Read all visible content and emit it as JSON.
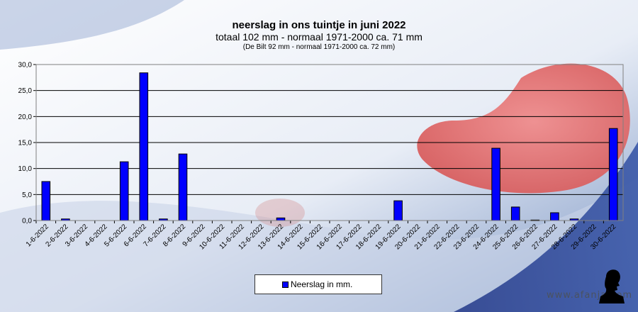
{
  "chart_data": {
    "type": "bar",
    "title": "neerslag in ons tuintje in juni 2022",
    "subtitle": "totaal 102 mm - normaal 1971-2000 ca. 71 mm",
    "note": "(De Bilt 92 mm - normaal 1971-2000 ca. 72 mm)",
    "categories": [
      "1-6-2022",
      "2-6-2022",
      "3-6-2022",
      "4-6-2022",
      "5-6-2022",
      "6-6-2022",
      "7-6-2022",
      "8-6-2022",
      "9-6-2022",
      "10-6-2022",
      "11-6-2022",
      "12-6-2022",
      "13-6-2022",
      "14-6-2022",
      "15-6-2022",
      "16-6-2022",
      "17-6-2022",
      "18-6-2022",
      "19-6-2022",
      "20-6-2022",
      "21-6-2022",
      "22-6-2022",
      "23-6-2022",
      "24-6-2022",
      "25-6-2022",
      "26-6-2022",
      "27-6-2022",
      "28-6-2022",
      "29-6-2022",
      "30-6-2022"
    ],
    "series": [
      {
        "name": "Neerslag in mm.",
        "values": [
          7.5,
          0.3,
          0,
          0,
          11.3,
          28.4,
          0.3,
          12.8,
          0,
          0,
          0,
          0,
          0.5,
          0,
          0,
          0,
          0,
          0,
          3.8,
          0,
          0,
          0,
          0,
          13.9,
          2.6,
          0.1,
          1.5,
          0.3,
          0,
          17.7
        ],
        "color": "#0000ff"
      }
    ],
    "yticks": [
      "0,0",
      "5,0",
      "10,0",
      "15,0",
      "20,0",
      "25,0",
      "30,0"
    ],
    "ylim": [
      0,
      30
    ],
    "grid": true,
    "legend_position": "bottom-center"
  },
  "watermark": "www.afanja.com"
}
